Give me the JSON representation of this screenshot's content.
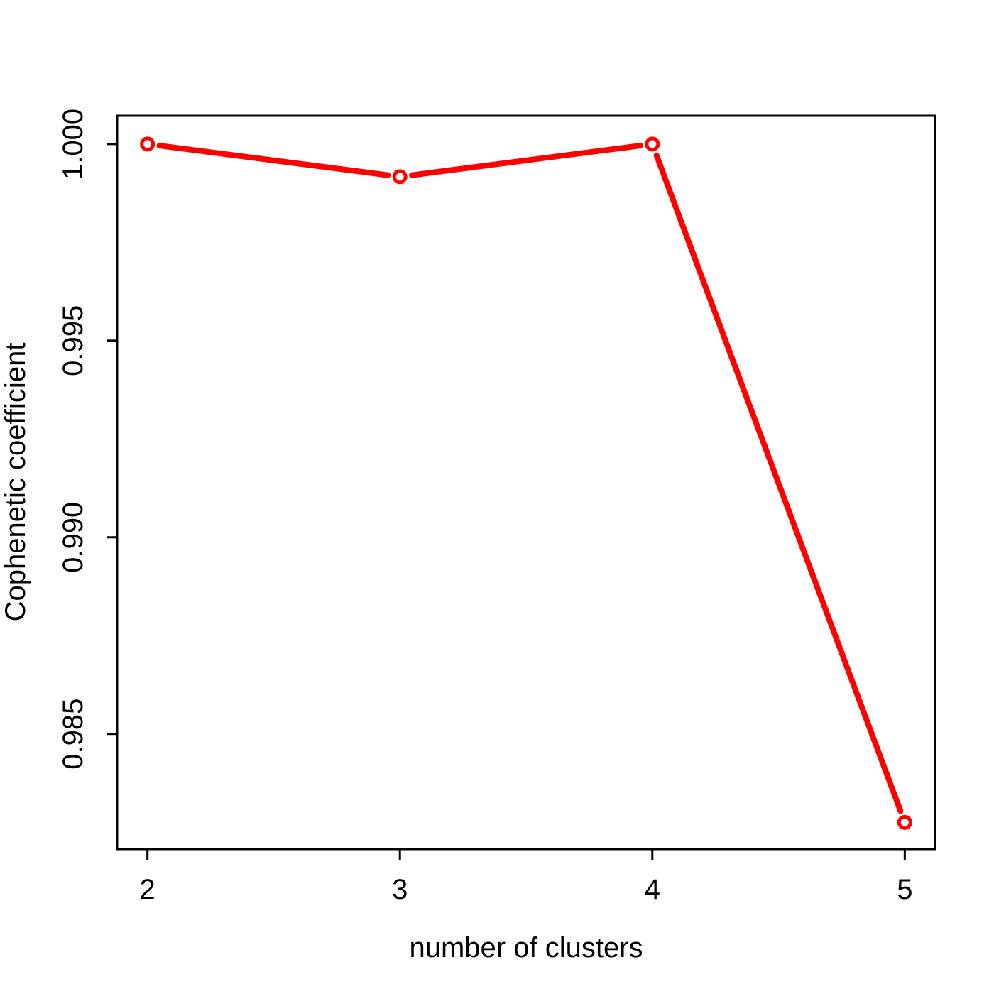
{
  "chart_data": {
    "type": "line",
    "title": "",
    "xlabel": "number of clusters",
    "ylabel": "Cophenetic coefficient",
    "x": [
      2,
      3,
      4,
      5
    ],
    "xticks": [
      "2",
      "3",
      "4",
      "5"
    ],
    "yticks": [
      0.985,
      0.99,
      0.995,
      1.0
    ],
    "ytick_labels": [
      "0.985",
      "0.990",
      "0.995",
      "1.000"
    ],
    "xlim": [
      1.88,
      5.12
    ],
    "ylim": [
      0.98207,
      1.00072
    ],
    "grid": false,
    "series": [
      {
        "values": [
          1.0,
          0.99917,
          1.0,
          0.98275
        ],
        "color": "#ff0000",
        "marker": "open-circle"
      }
    ]
  }
}
